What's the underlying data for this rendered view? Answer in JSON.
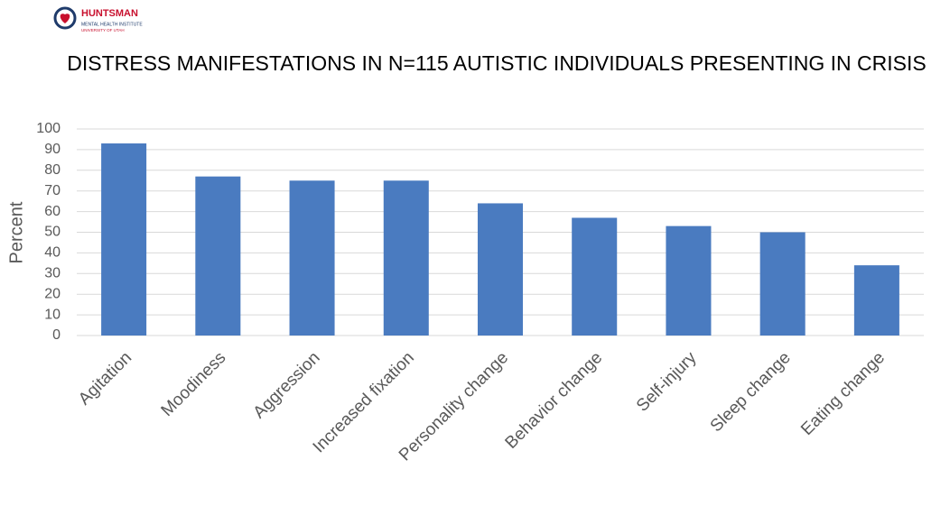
{
  "logo": {
    "name": "HUNTSMAN",
    "subtitle": "MENTAL HEALTH INSTITUTE",
    "university": "UNIVERSITY OF UTAH"
  },
  "chart_data": {
    "type": "bar",
    "title": "DISTRESS MANIFESTATIONS IN N=115 AUTISTIC INDIVIDUALS PRESENTING IN CRISIS",
    "y_label": "Percent",
    "categories": [
      "Agitation",
      "Moodiness",
      "Aggression",
      "Increased fixation",
      "Personality change",
      "Behavior change",
      "Self-injury",
      "Sleep change",
      "Eating change"
    ],
    "values": [
      93,
      77,
      75,
      75,
      64,
      57,
      53,
      50,
      34
    ],
    "color": "#4a7bc0",
    "ylim": [
      0,
      100
    ],
    "yticks": [
      0,
      10,
      20,
      30,
      40,
      50,
      60,
      70,
      80,
      90,
      100
    ],
    "grid": true
  }
}
